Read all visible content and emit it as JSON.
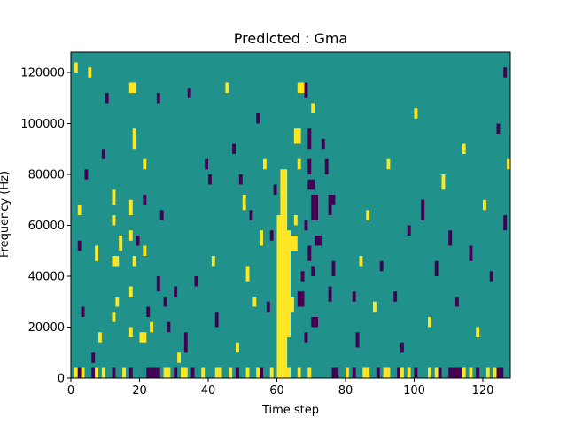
{
  "chart_data": {
    "type": "heatmap",
    "title": "Predicted : Gma",
    "xlabel": "Time step",
    "ylabel": "Frequency (Hz)",
    "xlim": [
      0,
      128
    ],
    "ylim": [
      0,
      128000
    ],
    "x_ticks": [
      {
        "value": 0,
        "label": "0"
      },
      {
        "value": 20,
        "label": "20"
      },
      {
        "value": 40,
        "label": "40"
      },
      {
        "value": 60,
        "label": "60"
      },
      {
        "value": 80,
        "label": "80"
      },
      {
        "value": 100,
        "label": "100"
      },
      {
        "value": 120,
        "label": "120"
      }
    ],
    "y_ticks": [
      {
        "value": 0,
        "label": "0"
      },
      {
        "value": 20000,
        "label": "20000"
      },
      {
        "value": 40000,
        "label": "40000"
      },
      {
        "value": 60000,
        "label": "60000"
      },
      {
        "value": 80000,
        "label": "80000"
      },
      {
        "value": 100000,
        "label": "100000"
      },
      {
        "value": 120000,
        "label": "120000"
      }
    ],
    "grid": false,
    "colormap": "viridis",
    "background_value": 0,
    "colors": {
      "low": "#440154",
      "mid": "#21918c",
      "high": "#fde725"
    },
    "cells_note_units": "cells: [time_step_start, time_step_end, freq_start_hz, freq_end_hz, value(-1 low,+1 high)]",
    "cells": [
      [
        60,
        63,
        0,
        64000,
        1
      ],
      [
        61,
        63,
        64000,
        82000,
        1
      ],
      [
        62,
        64,
        16000,
        58000,
        1
      ],
      [
        60,
        62,
        20000,
        24000,
        1
      ],
      [
        63,
        65,
        26000,
        32000,
        1
      ],
      [
        64,
        66,
        50000,
        56000,
        1
      ],
      [
        65,
        66,
        60000,
        64000,
        1
      ],
      [
        66,
        67,
        82000,
        86000,
        1
      ],
      [
        65,
        67,
        92000,
        98000,
        1
      ],
      [
        66,
        68,
        112000,
        116000,
        1
      ],
      [
        68,
        69,
        110000,
        116000,
        -1
      ],
      [
        69,
        70,
        90000,
        98000,
        -1
      ],
      [
        70,
        71,
        104000,
        108000,
        1
      ],
      [
        70,
        72,
        62000,
        72000,
        -1
      ],
      [
        71,
        73,
        52000,
        56000,
        -1
      ],
      [
        70,
        71,
        40000,
        44000,
        -1
      ],
      [
        70,
        72,
        20000,
        24000,
        -1
      ],
      [
        69,
        70,
        80000,
        86000,
        -1
      ],
      [
        69,
        71,
        74000,
        78000,
        -1
      ],
      [
        68,
        69,
        58000,
        62000,
        -1
      ],
      [
        69,
        70,
        46000,
        52000,
        -1
      ],
      [
        67,
        68,
        38000,
        42000,
        -1
      ],
      [
        66,
        68,
        28000,
        34000,
        -1
      ],
      [
        68,
        69,
        14000,
        18000,
        -1
      ],
      [
        75,
        76,
        64000,
        72000,
        -1
      ],
      [
        76,
        77,
        68000,
        72000,
        -1
      ],
      [
        74,
        75,
        80000,
        86000,
        -1
      ],
      [
        73,
        74,
        90000,
        94000,
        -1
      ],
      [
        75,
        76,
        30000,
        36000,
        -1
      ],
      [
        76,
        77,
        40000,
        46000,
        -1
      ],
      [
        12,
        14,
        44000,
        48000,
        1
      ],
      [
        12,
        13,
        60000,
        64000,
        1
      ],
      [
        12,
        13,
        68000,
        74000,
        1
      ],
      [
        14,
        15,
        50000,
        56000,
        1
      ],
      [
        12,
        13,
        22000,
        26000,
        1
      ],
      [
        13,
        14,
        28000,
        32000,
        1
      ],
      [
        17,
        18,
        16000,
        20000,
        1
      ],
      [
        17,
        18,
        32000,
        36000,
        1
      ],
      [
        18,
        19,
        44000,
        48000,
        1
      ],
      [
        17,
        18,
        54000,
        58000,
        1
      ],
      [
        17,
        18,
        64000,
        70000,
        1
      ],
      [
        18,
        19,
        90000,
        98000,
        1
      ],
      [
        17,
        19,
        112000,
        116000,
        1
      ],
      [
        20,
        22,
        14000,
        18000,
        1
      ],
      [
        21,
        22,
        48000,
        52000,
        1
      ],
      [
        21,
        22,
        82000,
        86000,
        1
      ],
      [
        21,
        22,
        68000,
        72000,
        -1
      ],
      [
        19,
        20,
        52000,
        56000,
        -1
      ],
      [
        22,
        23,
        24000,
        28000,
        -1
      ],
      [
        23,
        24,
        18000,
        22000,
        1
      ],
      [
        25,
        26,
        34000,
        40000,
        -1
      ],
      [
        26,
        27,
        62000,
        66000,
        -1
      ],
      [
        27,
        28,
        28000,
        32000,
        -1
      ],
      [
        25,
        26,
        108000,
        112000,
        -1
      ],
      [
        28,
        29,
        18000,
        22000,
        -1
      ],
      [
        30,
        31,
        32000,
        36000,
        -1
      ],
      [
        31,
        32,
        6000,
        10000,
        1
      ],
      [
        33,
        34,
        10000,
        18000,
        -1
      ],
      [
        34,
        35,
        110000,
        114000,
        -1
      ],
      [
        36,
        37,
        36000,
        40000,
        -1
      ],
      [
        39,
        40,
        82000,
        86000,
        -1
      ],
      [
        40,
        41,
        76000,
        80000,
        -1
      ],
      [
        41,
        42,
        44000,
        48000,
        1
      ],
      [
        42,
        43,
        20000,
        26000,
        -1
      ],
      [
        45,
        46,
        112000,
        116000,
        1
      ],
      [
        47,
        48,
        88000,
        92000,
        -1
      ],
      [
        49,
        50,
        76000,
        80000,
        -1
      ],
      [
        50,
        51,
        66000,
        72000,
        1
      ],
      [
        51,
        52,
        38000,
        44000,
        1
      ],
      [
        52,
        53,
        62000,
        66000,
        -1
      ],
      [
        48,
        49,
        10000,
        14000,
        1
      ],
      [
        53,
        54,
        28000,
        32000,
        1
      ],
      [
        55,
        56,
        52000,
        58000,
        1
      ],
      [
        56,
        57,
        82000,
        86000,
        1
      ],
      [
        57,
        58,
        26000,
        30000,
        -1
      ],
      [
        58,
        59,
        54000,
        58000,
        -1
      ],
      [
        59,
        60,
        72000,
        76000,
        -1
      ],
      [
        54,
        55,
        100000,
        104000,
        -1
      ],
      [
        82,
        83,
        30000,
        34000,
        -1
      ],
      [
        83,
        84,
        12000,
        18000,
        -1
      ],
      [
        84,
        85,
        44000,
        48000,
        1
      ],
      [
        86,
        87,
        62000,
        66000,
        1
      ],
      [
        88,
        89,
        26000,
        30000,
        1
      ],
      [
        90,
        91,
        42000,
        46000,
        -1
      ],
      [
        92,
        93,
        82000,
        86000,
        1
      ],
      [
        94,
        95,
        30000,
        34000,
        -1
      ],
      [
        96,
        97,
        10000,
        14000,
        -1
      ],
      [
        98,
        99,
        56000,
        60000,
        -1
      ],
      [
        100,
        101,
        102000,
        106000,
        1
      ],
      [
        102,
        103,
        62000,
        70000,
        -1
      ],
      [
        104,
        105,
        20000,
        24000,
        1
      ],
      [
        106,
        107,
        40000,
        46000,
        -1
      ],
      [
        108,
        109,
        74000,
        80000,
        1
      ],
      [
        110,
        111,
        52000,
        58000,
        -1
      ],
      [
        112,
        113,
        28000,
        32000,
        -1
      ],
      [
        114,
        115,
        88000,
        92000,
        1
      ],
      [
        116,
        117,
        46000,
        52000,
        -1
      ],
      [
        118,
        119,
        16000,
        20000,
        1
      ],
      [
        120,
        121,
        66000,
        70000,
        1
      ],
      [
        122,
        123,
        38000,
        42000,
        -1
      ],
      [
        124,
        125,
        96000,
        100000,
        -1
      ],
      [
        126,
        127,
        58000,
        64000,
        -1
      ],
      [
        127,
        128,
        82000,
        86000,
        1
      ],
      [
        126,
        127,
        118000,
        122000,
        -1
      ],
      [
        2,
        3,
        50000,
        54000,
        -1
      ],
      [
        3,
        4,
        24000,
        28000,
        -1
      ],
      [
        4,
        5,
        78000,
        82000,
        -1
      ],
      [
        5,
        6,
        118000,
        122000,
        1
      ],
      [
        6,
        7,
        6000,
        10000,
        -1
      ],
      [
        7,
        8,
        46000,
        52000,
        1
      ],
      [
        8,
        9,
        14000,
        18000,
        1
      ],
      [
        9,
        10,
        86000,
        90000,
        -1
      ],
      [
        10,
        11,
        108000,
        112000,
        -1
      ],
      [
        1,
        2,
        120000,
        124000,
        1
      ],
      [
        2,
        3,
        64000,
        68000,
        1
      ],
      [
        0,
        128,
        0,
        4000,
        0
      ]
    ],
    "bottom_row": {
      "freq_range_hz": [
        0,
        4000
      ],
      "values": [
        0,
        1,
        -1,
        1,
        0,
        0,
        -1,
        1,
        0,
        1,
        0,
        0,
        -1,
        0,
        0,
        1,
        0,
        -1,
        0,
        0,
        0,
        0,
        -1,
        -1,
        -1,
        -1,
        0,
        1,
        1,
        0,
        -1,
        0,
        1,
        1,
        0,
        -1,
        0,
        0,
        1,
        0,
        0,
        0,
        1,
        1,
        0,
        0,
        1,
        0,
        -1,
        0,
        0,
        1,
        0,
        0,
        1,
        -1,
        0,
        0,
        1,
        0,
        1,
        0,
        1,
        1,
        0,
        0,
        1,
        0,
        0,
        1,
        0,
        0,
        0,
        0,
        0,
        0,
        -1,
        -1,
        0,
        0,
        1,
        0,
        -1,
        0,
        0,
        1,
        1,
        0,
        0,
        -1,
        0,
        1,
        1,
        0,
        0,
        -1,
        1,
        0,
        1,
        0,
        -1,
        0,
        0,
        0,
        1,
        0,
        1,
        -1,
        0,
        0,
        -1,
        -1,
        -1,
        -1,
        1,
        0,
        1,
        0,
        -1,
        0,
        0,
        1,
        0,
        1,
        -1,
        -1,
        0,
        0
      ]
    }
  }
}
